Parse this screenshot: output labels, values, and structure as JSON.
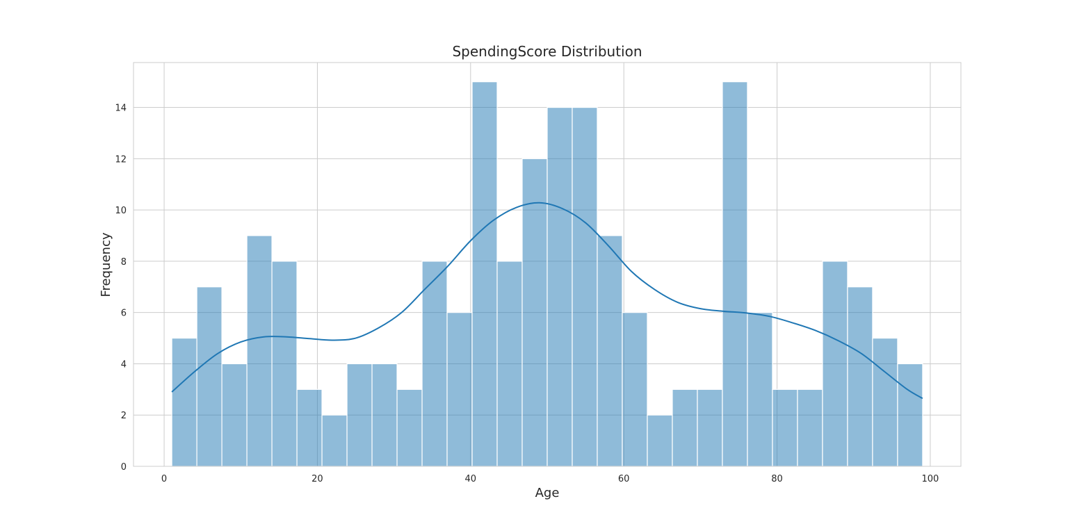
{
  "chart_data": {
    "type": "bar",
    "title": "SpendingScore Distribution",
    "xlabel": "Age",
    "ylabel": "Frequency",
    "xlim": [
      -4,
      104
    ],
    "ylim": [
      0,
      15.75
    ],
    "grid": true,
    "xticks": [
      0,
      20,
      40,
      60,
      80,
      100
    ],
    "yticks": [
      0,
      2,
      4,
      6,
      8,
      10,
      12,
      14
    ],
    "bins": {
      "start": 1,
      "end": 99,
      "values": [
        5,
        7,
        4,
        9,
        8,
        3,
        2,
        4,
        4,
        3,
        8,
        6,
        15,
        8,
        12,
        14,
        14,
        9,
        6,
        2,
        3,
        3,
        15,
        6,
        3,
        3,
        8,
        7,
        5,
        4
      ]
    },
    "kde": {
      "x": [
        1,
        4,
        7,
        10,
        13,
        16,
        19,
        22,
        25,
        28,
        31,
        34,
        37,
        40,
        43,
        46,
        49,
        52,
        55,
        58,
        61,
        64,
        67,
        70,
        73,
        76,
        79,
        82,
        85,
        88,
        91,
        94,
        97,
        99
      ],
      "y": [
        2.9,
        3.7,
        4.4,
        4.85,
        5.05,
        5.05,
        4.98,
        4.92,
        5.0,
        5.4,
        6.0,
        6.9,
        7.8,
        8.8,
        9.6,
        10.1,
        10.28,
        10.05,
        9.5,
        8.6,
        7.6,
        6.9,
        6.4,
        6.15,
        6.05,
        5.98,
        5.85,
        5.6,
        5.3,
        4.9,
        4.4,
        3.7,
        3.0,
        2.65
      ],
      "color": "#1f77b4"
    },
    "bar_color": "#1f77b4"
  }
}
